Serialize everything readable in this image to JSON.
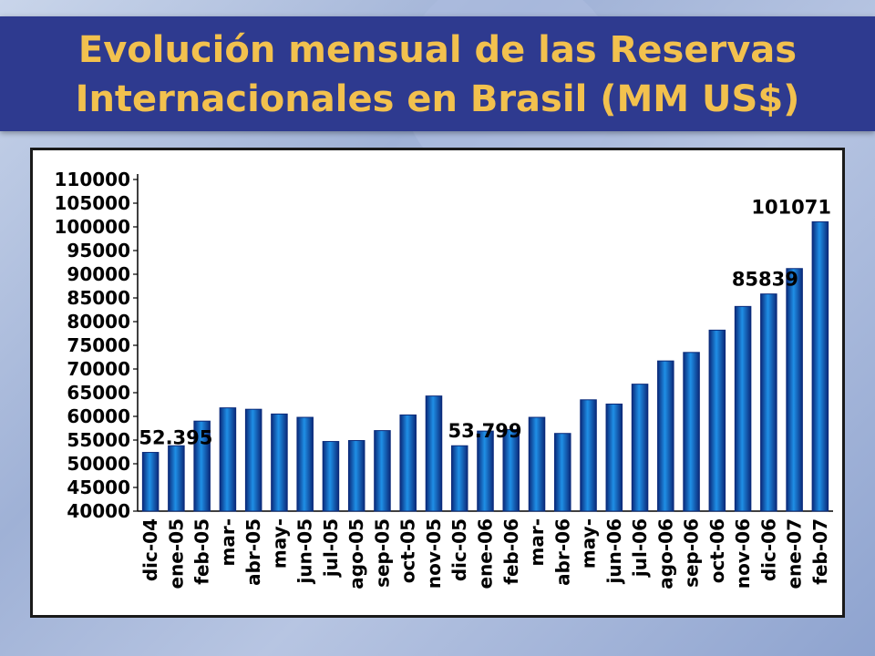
{
  "slide": {
    "title_line1": "Evolución mensual de las Reservas",
    "title_line2": "Internacionales en Brasil (MM US$)"
  },
  "colors": {
    "title_bg": "#2e3a8f",
    "title_text": "#f2c14e",
    "bar_fill": "#1f8fe6",
    "bar_edge": "#0a2a7a"
  },
  "chart_data": {
    "type": "bar",
    "categories": [
      "dic-04",
      "ene-05",
      "feb-05",
      "mar-",
      "abr-05",
      "may-",
      "jun-05",
      "jul-05",
      "ago-05",
      "sep-05",
      "oct-05",
      "nov-05",
      "dic-05",
      "ene-06",
      "feb-06",
      "mar-",
      "abr-06",
      "may-",
      "jun-06",
      "jul-06",
      "ago-06",
      "sep-06",
      "oct-06",
      "nov-06",
      "dic-06",
      "ene-07",
      "feb-07"
    ],
    "values": [
      52395,
      53800,
      59000,
      61800,
      61500,
      60500,
      59800,
      54700,
      54900,
      57000,
      60300,
      64300,
      53799,
      56900,
      57200,
      59800,
      56400,
      63500,
      62600,
      66800,
      71700,
      73500,
      78200,
      83200,
      85839,
      91200,
      101071
    ],
    "data_labels": [
      {
        "index": 0,
        "text": "52.395"
      },
      {
        "index": 12,
        "text": "53.799"
      },
      {
        "index": 24,
        "text": "85839"
      },
      {
        "index": 26,
        "text": "101071"
      }
    ],
    "yticks": [
      "40000",
      "45000",
      "50000",
      "55000",
      "60000",
      "65000",
      "70000",
      "75000",
      "80000",
      "85000",
      "90000",
      "95000",
      "100000",
      "105000",
      "110000"
    ],
    "ylim": [
      40000,
      110000
    ],
    "xlabel": "",
    "ylabel": "",
    "grid": false,
    "legend": "none"
  }
}
